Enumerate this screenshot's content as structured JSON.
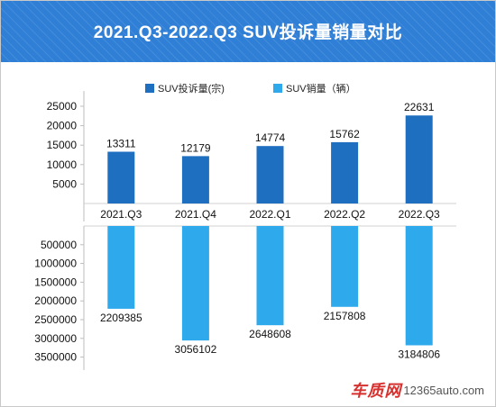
{
  "title": "2021.Q3-2022.Q3 SUV投诉量销量对比",
  "watermark": {
    "brand": "车质网",
    "site": "12365auto.com"
  },
  "colors": {
    "header": "#2f7fd6",
    "complaints": "#1f6fc0",
    "sales": "#2ea9ec"
  },
  "chart_data": [
    {
      "type": "bar",
      "categories": [
        "2021.Q3",
        "2021.Q4",
        "2022.Q1",
        "2022.Q2",
        "2022.Q3"
      ],
      "series": [
        {
          "name": "SUV投诉量(宗)",
          "values": [
            13311,
            12179,
            14774,
            15762,
            22631
          ]
        }
      ],
      "yticks": [
        "25000",
        "20000",
        "15000",
        "10000",
        "5000"
      ],
      "ylim": [
        0,
        25000
      ],
      "legend": "top"
    },
    {
      "type": "bar",
      "orientation": "downward",
      "categories": [
        "2021.Q3",
        "2021.Q4",
        "2022.Q1",
        "2022.Q2",
        "2022.Q3"
      ],
      "series": [
        {
          "name": "SUV销量（辆）",
          "values": [
            2209385,
            3056102,
            2648608,
            2157808,
            3184806
          ]
        }
      ],
      "yticks": [
        "500000",
        "1000000",
        "1500000",
        "2000000",
        "2500000",
        "3000000",
        "3500000"
      ],
      "ylim": [
        0,
        3500000
      ],
      "legend": "top"
    }
  ]
}
